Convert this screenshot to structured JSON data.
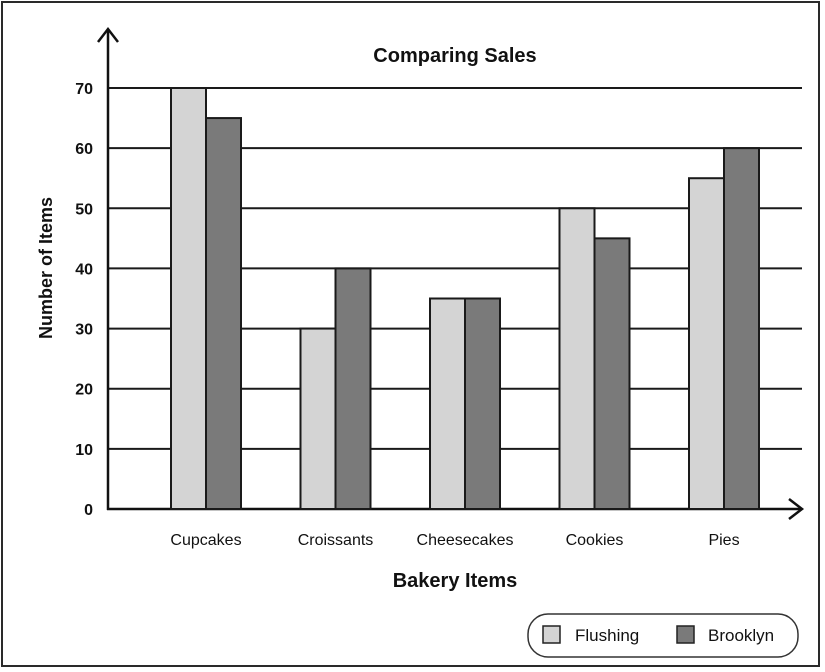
{
  "chart_data": {
    "type": "bar",
    "title": "Comparing Sales",
    "xlabel": "Bakery Items",
    "ylabel": "Number of Items",
    "categories": [
      "Cupcakes",
      "Croissants",
      "Cheesecakes",
      "Cookies",
      "Pies"
    ],
    "series": [
      {
        "name": "Flushing",
        "values": [
          70,
          30,
          35,
          50,
          55
        ],
        "color": "#d4d4d4"
      },
      {
        "name": "Brooklyn",
        "values": [
          65,
          40,
          35,
          45,
          60
        ],
        "color": "#7a7a7a"
      }
    ],
    "ylim": [
      0,
      70
    ],
    "yticks": [
      0,
      10,
      20,
      30,
      40,
      50,
      60,
      70
    ],
    "grid": true,
    "legend_position": "bottom-right"
  }
}
